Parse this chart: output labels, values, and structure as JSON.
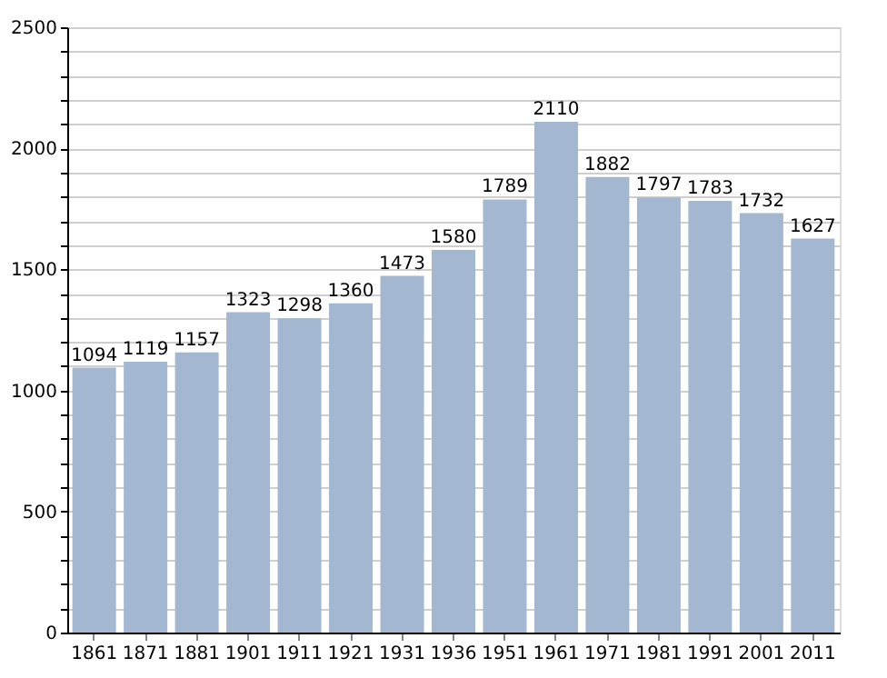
{
  "chart_data": {
    "type": "bar",
    "categories": [
      "1861",
      "1871",
      "1881",
      "1901",
      "1911",
      "1921",
      "1931",
      "1936",
      "1951",
      "1961",
      "1971",
      "1981",
      "1991",
      "2001",
      "2011"
    ],
    "values": [
      1094,
      1119,
      1157,
      1323,
      1298,
      1360,
      1473,
      1580,
      1789,
      2110,
      1882,
      1797,
      1783,
      1732,
      1627
    ],
    "color": "#a3b7d0",
    "ylim": [
      0,
      2500
    ],
    "yticks": [
      0,
      {
        "value": 100,
        "label": null
      },
      {
        "value": 200,
        "label": null
      },
      {
        "value": 300,
        "label": null
      },
      {
        "value": 400,
        "label": null
      },
      500,
      {
        "value": 600,
        "label": null
      },
      {
        "value": 700,
        "label": null
      },
      {
        "value": 800,
        "label": null
      },
      {
        "value": 900,
        "label": null
      },
      1000,
      {
        "value": 1100,
        "label": null
      },
      {
        "value": 1200,
        "label": null
      },
      {
        "value": 1300,
        "label": null
      },
      {
        "value": 1400,
        "label": null
      },
      1500,
      {
        "value": 1600,
        "label": null
      },
      {
        "value": 1700,
        "label": null
      },
      {
        "value": 1800,
        "label": null
      },
      {
        "value": 1900,
        "label": null
      },
      2000,
      {
        "value": 2100,
        "label": null
      },
      {
        "value": 2200,
        "label": null
      },
      {
        "value": 2300,
        "label": null
      },
      {
        "value": 2400,
        "label": null
      },
      2500
    ],
    "grid": "y",
    "data_labels": true
  }
}
